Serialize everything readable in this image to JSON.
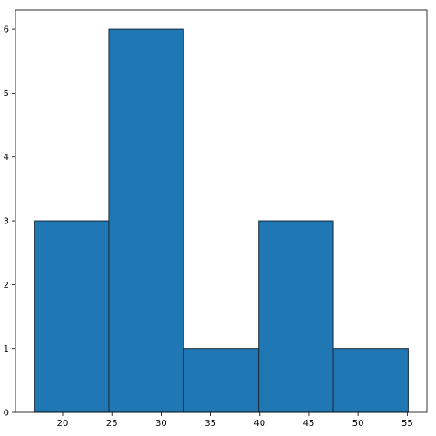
{
  "chart_data": {
    "type": "bar",
    "subtype": "histogram",
    "bins": [
      {
        "x0": 17.1,
        "x1": 24.7,
        "count": 3
      },
      {
        "x0": 24.7,
        "x1": 32.3,
        "count": 6
      },
      {
        "x0": 32.3,
        "x1": 39.9,
        "count": 1
      },
      {
        "x0": 39.9,
        "x1": 47.5,
        "count": 3
      },
      {
        "x0": 47.5,
        "x1": 55.1,
        "count": 1
      }
    ],
    "title": "",
    "xlabel": "",
    "ylabel": "",
    "xlim": [
      15.2,
      57.0
    ],
    "ylim": [
      0,
      6.3
    ],
    "xticks": [
      20,
      25,
      30,
      35,
      40,
      45,
      50,
      55
    ],
    "yticks": [
      0,
      1,
      2,
      3,
      4,
      5,
      6
    ],
    "grid": false,
    "legend": "none",
    "colors": {
      "bar_fill": "#1f77b4",
      "bar_edge": "#1a2a3a",
      "axis": "#000000",
      "background": "#ffffff"
    }
  }
}
